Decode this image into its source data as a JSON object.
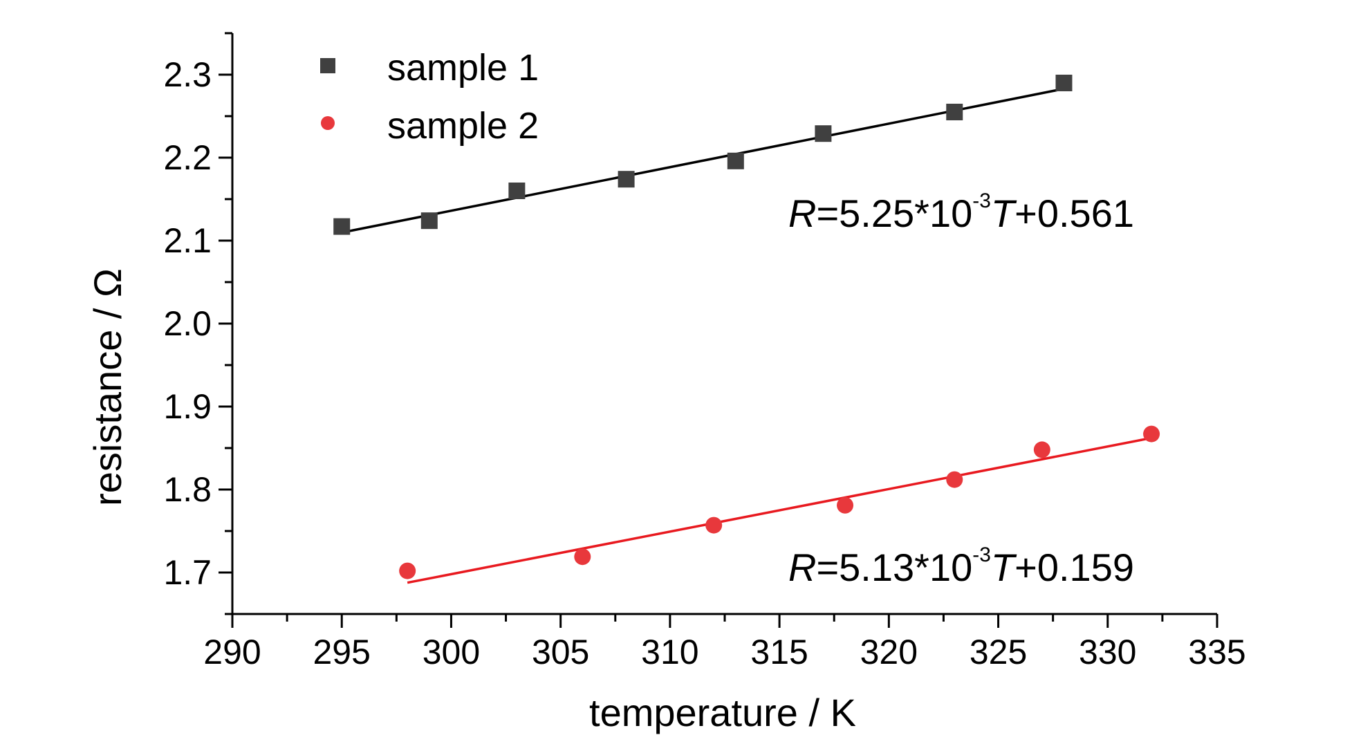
{
  "chart_data": {
    "type": "scatter",
    "xlabel": "temperature / K",
    "ylabel": "resistance / Ω",
    "xlim": [
      290,
      335
    ],
    "ylim": [
      1.65,
      2.35
    ],
    "xticks": [
      "290",
      "295",
      "300",
      "305",
      "310",
      "315",
      "320",
      "325",
      "330",
      "335"
    ],
    "yticks": [
      "1.7",
      "1.8",
      "1.9",
      "2.0",
      "2.1",
      "2.2",
      "2.3"
    ],
    "grid": false,
    "legend_position": "top-left",
    "series": [
      {
        "name": "sample 1",
        "marker": "square",
        "color": "#404040",
        "fit_color": "#000000",
        "x": [
          295,
          299,
          303,
          308,
          313,
          317,
          323,
          328
        ],
        "y": [
          2.117,
          2.124,
          2.16,
          2.174,
          2.196,
          2.229,
          2.255,
          2.29
        ],
        "fit": {
          "slope": 0.00525,
          "intercept": 0.561,
          "x_range": [
            295,
            328
          ]
        },
        "equation": {
          "var": "R",
          "coef": "=5.25*10",
          "exp": "-3",
          "tvar": "T",
          "rest": "+0.561"
        }
      },
      {
        "name": "sample 2",
        "marker": "circle",
        "color": "#e8383c",
        "fit_color": "#e8191f",
        "x": [
          298,
          306,
          312,
          318,
          323,
          327,
          332
        ],
        "y": [
          1.702,
          1.719,
          1.757,
          1.781,
          1.812,
          1.848,
          1.867
        ],
        "fit": {
          "slope": 0.00513,
          "intercept": 0.159,
          "x_range": [
            298,
            332
          ]
        },
        "equation": {
          "var": "R",
          "coef": "=5.13*10",
          "exp": "-3",
          "tvar": "T",
          "rest": "+0.159"
        }
      }
    ]
  }
}
